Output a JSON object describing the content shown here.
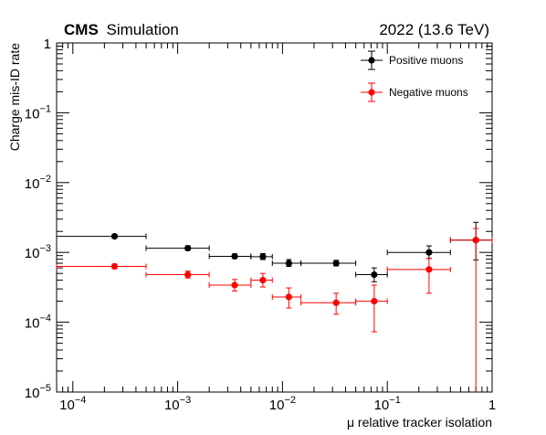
{
  "header": {
    "experiment": "CMS",
    "label": "Simulation",
    "energy": "2022 (13.6 TeV)"
  },
  "chart_data": {
    "type": "scatter",
    "xlabel": "μ relative tracker isolation",
    "ylabel": "Charge mis-ID rate",
    "x_scale": "log",
    "y_scale": "log",
    "xlim": [
      7e-05,
      1
    ],
    "ylim": [
      1e-05,
      1
    ],
    "grid": false,
    "legend_position": "top-right",
    "x_ticks": [
      {
        "value": 0.0001,
        "base": "10",
        "exp": "−4"
      },
      {
        "value": 0.001,
        "base": "10",
        "exp": "−3"
      },
      {
        "value": 0.01,
        "base": "10",
        "exp": "−2"
      },
      {
        "value": 0.1,
        "base": "10",
        "exp": "−1"
      },
      {
        "value": 1,
        "base": "1",
        "exp": ""
      }
    ],
    "y_ticks": [
      {
        "value": 1e-05,
        "base": "10",
        "exp": "−5"
      },
      {
        "value": 0.0001,
        "base": "10",
        "exp": "−4"
      },
      {
        "value": 0.001,
        "base": "10",
        "exp": "−3"
      },
      {
        "value": 0.01,
        "base": "10",
        "exp": "−2"
      },
      {
        "value": 0.1,
        "base": "10",
        "exp": "−1"
      },
      {
        "value": 1,
        "base": "1",
        "exp": ""
      }
    ],
    "series": [
      {
        "name": "Positive muons",
        "color": "#000000",
        "points": [
          {
            "x": 0.00025,
            "xlo": 7e-05,
            "xhi": 0.0005,
            "y": 0.0017,
            "ylo": 0.0016,
            "yhi": 0.0018
          },
          {
            "x": 0.00125,
            "xlo": 0.0005,
            "xhi": 0.002,
            "y": 0.00115,
            "ylo": 0.00107,
            "yhi": 0.00124
          },
          {
            "x": 0.0035,
            "xlo": 0.002,
            "xhi": 0.005,
            "y": 0.00088,
            "ylo": 0.00082,
            "yhi": 0.00095
          },
          {
            "x": 0.0065,
            "xlo": 0.005,
            "xhi": 0.008,
            "y": 0.00087,
            "ylo": 0.00079,
            "yhi": 0.00096
          },
          {
            "x": 0.0115,
            "xlo": 0.008,
            "xhi": 0.015,
            "y": 0.0007,
            "ylo": 0.00063,
            "yhi": 0.00079
          },
          {
            "x": 0.0325,
            "xlo": 0.015,
            "xhi": 0.05,
            "y": 0.0007,
            "ylo": 0.00064,
            "yhi": 0.00077
          },
          {
            "x": 0.075,
            "xlo": 0.05,
            "xhi": 0.1,
            "y": 0.00048,
            "ylo": 0.00038,
            "yhi": 0.0006
          },
          {
            "x": 0.25,
            "xlo": 0.1,
            "xhi": 0.4,
            "y": 0.001,
            "ylo": 0.00082,
            "yhi": 0.00124
          },
          {
            "x": 0.7,
            "xlo": 0.4,
            "xhi": 1,
            "y": 0.0015,
            "ylo": 0.00078,
            "yhi": 0.0027
          }
        ]
      },
      {
        "name": "Negative muons",
        "color": "#ff0000",
        "points": [
          {
            "x": 0.00025,
            "xlo": 7e-05,
            "xhi": 0.0005,
            "y": 0.00063,
            "ylo": 0.00059,
            "yhi": 0.00068
          },
          {
            "x": 0.00125,
            "xlo": 0.0005,
            "xhi": 0.002,
            "y": 0.00048,
            "ylo": 0.00043,
            "yhi": 0.00054
          },
          {
            "x": 0.0035,
            "xlo": 0.002,
            "xhi": 0.005,
            "y": 0.00034,
            "ylo": 0.00028,
            "yhi": 0.00041
          },
          {
            "x": 0.0065,
            "xlo": 0.005,
            "xhi": 0.008,
            "y": 0.0004,
            "ylo": 0.00032,
            "yhi": 0.0005
          },
          {
            "x": 0.0115,
            "xlo": 0.008,
            "xhi": 0.015,
            "y": 0.00023,
            "ylo": 0.00016,
            "yhi": 0.00031
          },
          {
            "x": 0.0325,
            "xlo": 0.015,
            "xhi": 0.05,
            "y": 0.00019,
            "ylo": 0.00013,
            "yhi": 0.00026
          },
          {
            "x": 0.075,
            "xlo": 0.05,
            "xhi": 0.1,
            "y": 0.0002,
            "ylo": 7.3e-05,
            "yhi": 0.00034
          },
          {
            "x": 0.25,
            "xlo": 0.1,
            "xhi": 0.4,
            "y": 0.00057,
            "ylo": 0.00026,
            "yhi": 0.00082
          },
          {
            "x": 0.7,
            "xlo": 0.4,
            "xhi": 1,
            "y": 0.0015,
            "ylo": 1e-05,
            "yhi": 0.0022
          }
        ]
      }
    ]
  }
}
